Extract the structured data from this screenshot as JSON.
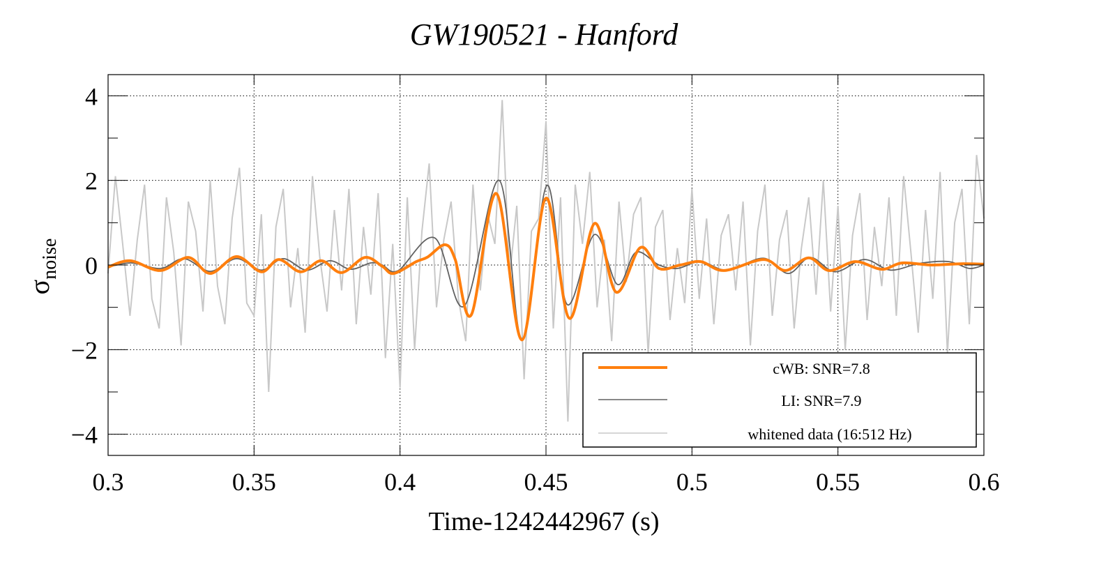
{
  "chart_data": {
    "type": "line",
    "title": "GW190521 - Hanford",
    "xlabel": "Time-1242442967 (s)",
    "ylabel": "σ",
    "ylabel_sub": "noise",
    "xlim": [
      0.3,
      0.6
    ],
    "ylim": [
      -4.5,
      4.5
    ],
    "grid": true,
    "x_ticks": [
      0.3,
      0.35,
      0.4,
      0.45,
      0.5,
      0.55,
      0.6
    ],
    "x_tick_labels": [
      "0.3",
      "0.35",
      "0.4",
      "0.45",
      "0.5",
      "0.55",
      "0.6"
    ],
    "y_ticks": [
      -4,
      -2,
      0,
      2,
      4
    ],
    "y_tick_labels": [
      "−4",
      "−2",
      "0",
      "2",
      "4"
    ],
    "legend_position": "bottom-right",
    "series": [
      {
        "name": "whitened data (16:512 Hz)",
        "color": "#c8c8c8",
        "x_start": 0.3,
        "x_step": 0.0025,
        "y": [
          -0.2,
          2.1,
          0.5,
          -1.2,
          0.6,
          1.9,
          -0.8,
          -1.5,
          1.6,
          0.3,
          -1.9,
          1.5,
          0.8,
          -1.1,
          2.0,
          -0.5,
          -1.4,
          1.1,
          2.3,
          -0.9,
          -1.2,
          1.2,
          -3.0,
          0.9,
          1.8,
          -1.0,
          0.4,
          -1.6,
          2.1,
          0.2,
          -1.1,
          1.3,
          -0.6,
          1.8,
          -1.4,
          0.9,
          -0.7,
          1.7,
          -2.2,
          0.5,
          -2.9,
          1.6,
          -2.0,
          0.8,
          2.4,
          -1.0,
          0.6,
          1.5,
          -0.8,
          -1.8,
          1.9,
          -0.6,
          1.2,
          0.5,
          3.9,
          -0.3,
          1.4,
          -2.7,
          0.8,
          1.1,
          3.4,
          -1.5,
          1.6,
          -3.7,
          1.9,
          0.5,
          2.2,
          -1.0,
          0.6,
          -1.8,
          1.5,
          -0.4,
          1.2,
          1.6,
          -2.1,
          0.9,
          1.3,
          -1.3,
          0.4,
          -0.9,
          1.8,
          -0.8,
          1.1,
          -1.4,
          0.7,
          1.2,
          -0.6,
          1.5,
          -1.9,
          0.8,
          1.9,
          -1.2,
          0.6,
          1.3,
          -1.5,
          0.4,
          1.6,
          -0.7,
          2.0,
          -1.1,
          1.4,
          -2.0,
          0.7,
          1.7,
          -1.3,
          0.9,
          -0.5,
          1.6,
          -1.2,
          2.1,
          0.3,
          -1.6,
          1.3,
          -0.8,
          2.2,
          -2.1,
          1.0,
          1.8,
          -1.4,
          2.6,
          1.1
        ]
      },
      {
        "name": "LI: SNR=7.9",
        "color": "#606060",
        "points": [
          [
            0.3,
            -0.05
          ],
          [
            0.308,
            0.05
          ],
          [
            0.318,
            -0.08
          ],
          [
            0.326,
            0.15
          ],
          [
            0.335,
            -0.15
          ],
          [
            0.344,
            0.15
          ],
          [
            0.3525,
            -0.12
          ],
          [
            0.36,
            0.15
          ],
          [
            0.368,
            -0.12
          ],
          [
            0.376,
            0.1
          ],
          [
            0.383,
            -0.1
          ],
          [
            0.39,
            0.05
          ],
          [
            0.3939,
            0.0
          ],
          [
            0.3994,
            -0.13
          ],
          [
            0.4119,
            0.64
          ],
          [
            0.422,
            -0.97
          ],
          [
            0.434,
            2.0
          ],
          [
            0.4417,
            -1.74
          ],
          [
            0.4503,
            1.88
          ],
          [
            0.4572,
            -0.93
          ],
          [
            0.4666,
            0.72
          ],
          [
            0.4745,
            -0.46
          ],
          [
            0.4808,
            0.3
          ],
          [
            0.4887,
            0.0
          ],
          [
            0.495,
            -0.08
          ],
          [
            0.503,
            0.08
          ],
          [
            0.512,
            -0.12
          ],
          [
            0.5245,
            0.16
          ],
          [
            0.533,
            -0.2
          ],
          [
            0.5405,
            0.18
          ],
          [
            0.549,
            -0.16
          ],
          [
            0.559,
            0.13
          ],
          [
            0.568,
            -0.12
          ],
          [
            0.578,
            0.04
          ],
          [
            0.588,
            0.08
          ],
          [
            0.595,
            -0.08
          ],
          [
            0.6,
            0.0
          ]
        ]
      },
      {
        "name": "cWB: SNR=7.8",
        "color": "#ff7f0e",
        "points": [
          [
            0.3,
            -0.05
          ],
          [
            0.3076,
            0.1
          ],
          [
            0.318,
            -0.13
          ],
          [
            0.3275,
            0.18
          ],
          [
            0.335,
            -0.2
          ],
          [
            0.344,
            0.2
          ],
          [
            0.3525,
            -0.16
          ],
          [
            0.3585,
            0.13
          ],
          [
            0.366,
            -0.16
          ],
          [
            0.373,
            0.1
          ],
          [
            0.38,
            -0.18
          ],
          [
            0.388,
            0.18
          ],
          [
            0.3939,
            -0.03
          ],
          [
            0.3978,
            -0.2
          ],
          [
            0.4056,
            0.08
          ],
          [
            0.4095,
            0.19
          ],
          [
            0.4154,
            0.48
          ],
          [
            0.4189,
            0.13
          ],
          [
            0.4244,
            -1.18
          ],
          [
            0.433,
            1.69
          ],
          [
            0.4417,
            -1.77
          ],
          [
            0.45,
            1.58
          ],
          [
            0.458,
            -1.26
          ],
          [
            0.4666,
            0.98
          ],
          [
            0.474,
            -0.64
          ],
          [
            0.4823,
            0.41
          ],
          [
            0.4887,
            -0.08
          ],
          [
            0.496,
            0.0
          ],
          [
            0.503,
            0.08
          ],
          [
            0.511,
            -0.13
          ],
          [
            0.5245,
            0.13
          ],
          [
            0.532,
            -0.13
          ],
          [
            0.54,
            0.17
          ],
          [
            0.547,
            -0.13
          ],
          [
            0.556,
            0.08
          ],
          [
            0.565,
            -0.1
          ],
          [
            0.572,
            0.05
          ],
          [
            0.582,
            0.0
          ],
          [
            0.592,
            0.03
          ],
          [
            0.6,
            0.02
          ]
        ]
      }
    ]
  }
}
